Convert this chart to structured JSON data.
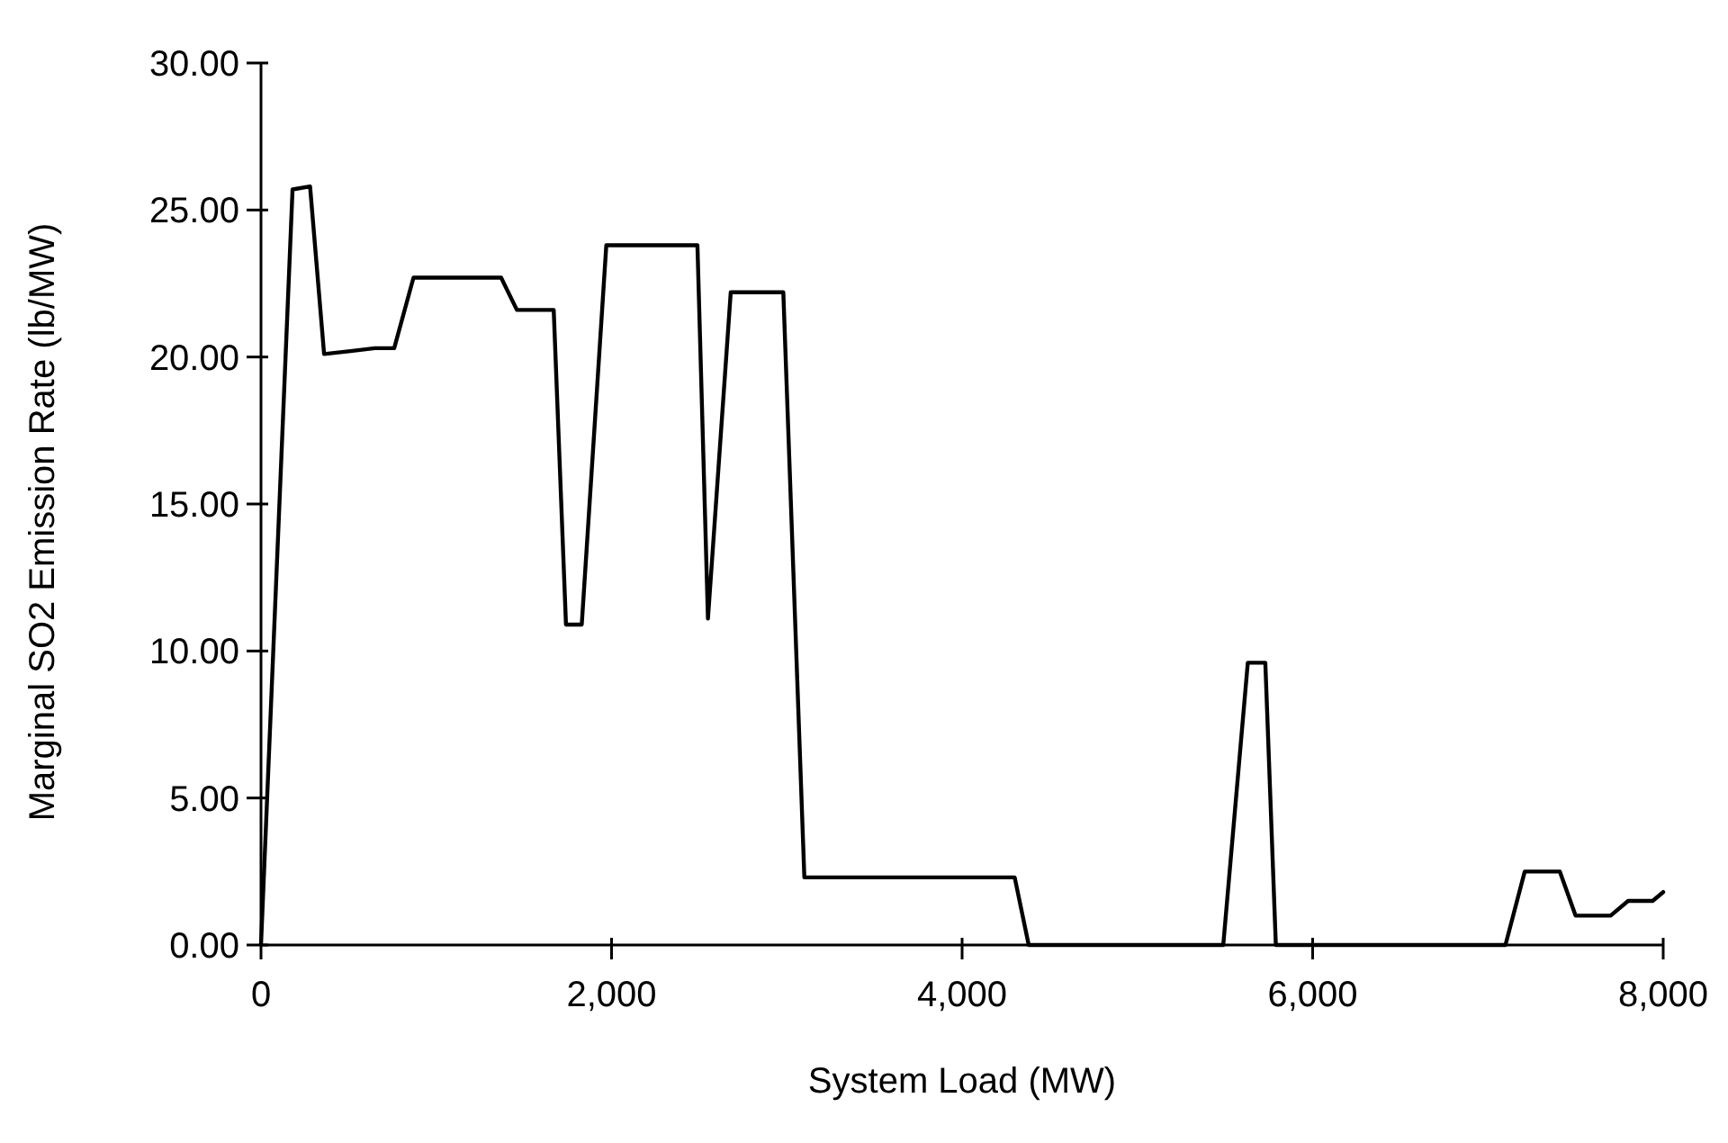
{
  "chart_data": {
    "type": "line",
    "xlabel": "System Load (MW)",
    "ylabel": "Marginal SO2 Emission Rate (lb/MW)",
    "xlim": [
      0,
      8000
    ],
    "ylim": [
      0,
      30
    ],
    "xticks": [
      {
        "value": 0,
        "label": "0"
      },
      {
        "value": 2000,
        "label": "2,000"
      },
      {
        "value": 4000,
        "label": "4,000"
      },
      {
        "value": 6000,
        "label": "6,000"
      },
      {
        "value": 8000,
        "label": "8,000"
      }
    ],
    "yticks": [
      {
        "value": 0,
        "label": "0.00"
      },
      {
        "value": 5,
        "label": "5.00"
      },
      {
        "value": 10,
        "label": "10.00"
      },
      {
        "value": 15,
        "label": "15.00"
      },
      {
        "value": 20,
        "label": "20.00"
      },
      {
        "value": 25,
        "label": "25.00"
      },
      {
        "value": 30,
        "label": "30.00"
      }
    ],
    "grid": false,
    "marker": "none",
    "line_style": "solid",
    "series": [
      {
        "color": "#000000",
        "x": [
          0,
          180,
          280,
          360,
          510,
          650,
          760,
          870,
          1370,
          1460,
          1670,
          1740,
          1830,
          1970,
          2490,
          2550,
          2680,
          2980,
          3100,
          3680,
          4300,
          4380,
          5490,
          5630,
          5730,
          5790,
          7100,
          7210,
          7410,
          7500,
          7700,
          7800,
          7940,
          8000
        ],
        "values": [
          0,
          25.7,
          25.8,
          20.1,
          20.2,
          20.3,
          20.3,
          22.7,
          22.7,
          21.6,
          21.6,
          10.9,
          10.9,
          23.8,
          23.8,
          11.1,
          22.2,
          22.2,
          2.3,
          2.3,
          2.3,
          0,
          0,
          9.6,
          9.6,
          0,
          0,
          2.5,
          2.5,
          1.0,
          1.0,
          1.5,
          1.5,
          1.8
        ]
      }
    ]
  }
}
